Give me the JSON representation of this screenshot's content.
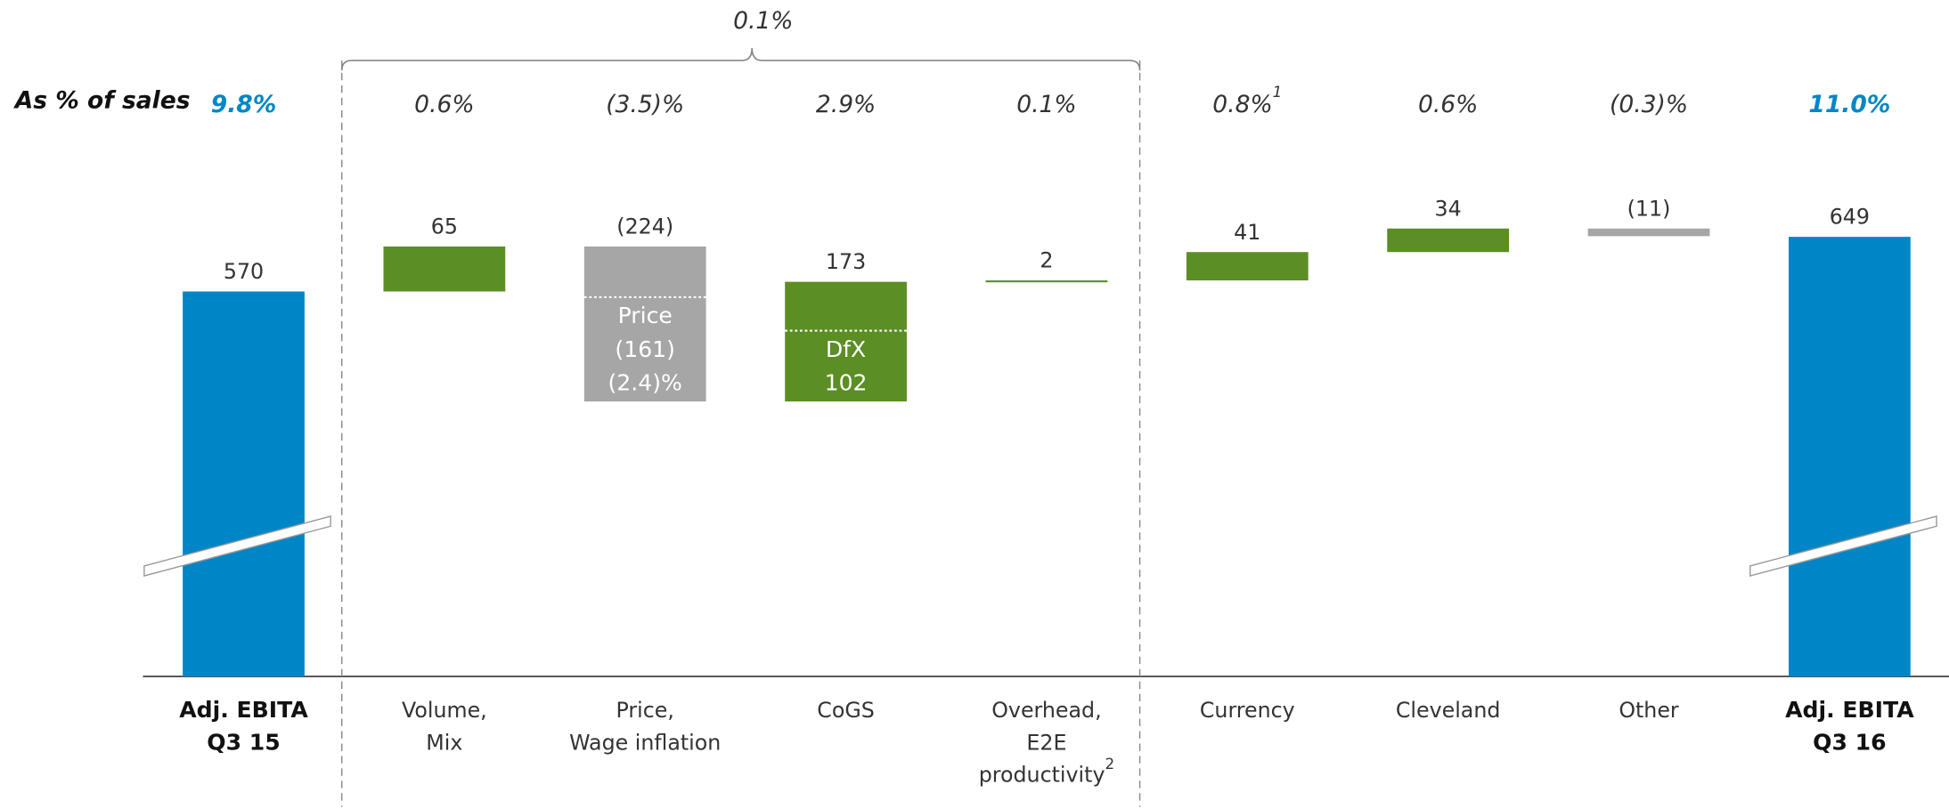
{
  "chart_data": {
    "type": "waterfall",
    "categories": [
      [
        "Adj. EBITA",
        "Q3 15"
      ],
      [
        "Volume,",
        "Mix"
      ],
      [
        "Price,",
        "Wage inflation"
      ],
      [
        "CoGS"
      ],
      [
        "Overhead,",
        "E2E",
        "productivity"
      ],
      [
        "Currency"
      ],
      [
        "Cleveland"
      ],
      [
        "Other"
      ],
      [
        "Adj. EBITA",
        "Q3 16"
      ]
    ],
    "category_notes": [
      null,
      null,
      null,
      null,
      "2",
      null,
      null,
      null,
      null
    ],
    "values": [
      570,
      65,
      -224,
      173,
      2,
      41,
      34,
      -11,
      649
    ],
    "value_labels": [
      "570",
      "65",
      "(224)",
      "173",
      "2",
      "41",
      "34",
      "(11)",
      "649"
    ],
    "measure": [
      "total",
      "relative",
      "relative",
      "relative",
      "relative",
      "relative",
      "relative",
      "relative",
      "total"
    ],
    "row_label": "As % of sales",
    "pct_labels": [
      "9.8%",
      "0.6%",
      "(3.5)%",
      "2.9%",
      "0.1%",
      "0.8%",
      "0.6%",
      "(0.3)%",
      "11.0%"
    ],
    "pct_notes": [
      null,
      null,
      null,
      null,
      null,
      "1",
      null,
      null,
      null
    ],
    "inner_labels": [
      null,
      null,
      [
        "Price",
        "(161)",
        "(2.4)%"
      ],
      [
        "DfX",
        "102"
      ],
      null,
      null,
      null,
      null,
      null
    ],
    "bracket_label": "0.1%",
    "colors": {
      "total": "#0086c6",
      "increase": "#5b8e24",
      "decrease": "#a6a6a6"
    }
  }
}
